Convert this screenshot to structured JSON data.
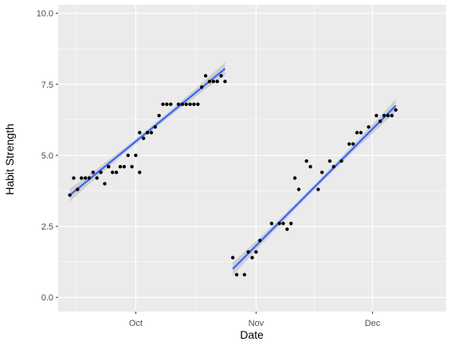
{
  "chart_data": {
    "type": "scatter",
    "title": "",
    "xlabel": "Date",
    "ylabel": "Habit Strength",
    "x_is_date": true,
    "xlim": [
      "2022-09-11",
      "2022-12-20"
    ],
    "ylim": [
      -0.5,
      10.3
    ],
    "yticks": [
      0.0,
      2.5,
      5.0,
      7.5,
      10.0
    ],
    "ytick_labels": [
      "0.0",
      "2.5",
      "5.0",
      "7.5",
      "10.0"
    ],
    "xticks": [
      "2022-10-01",
      "2022-11-01",
      "2022-12-01"
    ],
    "xtick_labels": [
      "Oct",
      "Nov",
      "Dec"
    ],
    "grid": true,
    "panel_background": "#ebebeb",
    "grid_color": "#ffffff",
    "point_color": "#000000",
    "trend_color": "#3366ff",
    "band_color": "#bdbdbd",
    "series": [
      {
        "points": [
          [
            "2022-09-14",
            3.6
          ],
          [
            "2022-09-15",
            4.2
          ],
          [
            "2022-09-16",
            3.8
          ],
          [
            "2022-09-17",
            4.2
          ],
          [
            "2022-09-18",
            4.2
          ],
          [
            "2022-09-19",
            4.2
          ],
          [
            "2022-09-20",
            4.4
          ],
          [
            "2022-09-21",
            4.2
          ],
          [
            "2022-09-22",
            4.4
          ],
          [
            "2022-09-23",
            4.0
          ],
          [
            "2022-09-24",
            4.6
          ],
          [
            "2022-09-25",
            4.4
          ],
          [
            "2022-09-26",
            4.4
          ],
          [
            "2022-09-27",
            4.6
          ],
          [
            "2022-09-28",
            4.6
          ],
          [
            "2022-09-29",
            5.0
          ],
          [
            "2022-09-30",
            4.6
          ],
          [
            "2022-10-01",
            5.0
          ],
          [
            "2022-10-02",
            4.4
          ],
          [
            "2022-10-02",
            5.8
          ],
          [
            "2022-10-03",
            5.6
          ],
          [
            "2022-10-04",
            5.8
          ],
          [
            "2022-10-05",
            5.8
          ],
          [
            "2022-10-06",
            6.0
          ],
          [
            "2022-10-07",
            6.4
          ],
          [
            "2022-10-08",
            6.8
          ],
          [
            "2022-10-09",
            6.8
          ],
          [
            "2022-10-10",
            6.8
          ],
          [
            "2022-10-12",
            6.8
          ],
          [
            "2022-10-13",
            6.8
          ],
          [
            "2022-10-14",
            6.8
          ],
          [
            "2022-10-15",
            6.8
          ],
          [
            "2022-10-16",
            6.8
          ],
          [
            "2022-10-17",
            6.8
          ],
          [
            "2022-10-18",
            7.4
          ],
          [
            "2022-10-19",
            7.8
          ],
          [
            "2022-10-20",
            7.6
          ],
          [
            "2022-10-21",
            7.6
          ],
          [
            "2022-10-22",
            7.6
          ],
          [
            "2022-10-23",
            7.8
          ],
          [
            "2022-10-24",
            7.6
          ]
        ],
        "trend": {
          "start": [
            "2022-09-14",
            3.6
          ],
          "end": [
            "2022-10-24",
            8.05
          ]
        }
      },
      {
        "points": [
          [
            "2022-10-26",
            1.4
          ],
          [
            "2022-10-27",
            0.8
          ],
          [
            "2022-10-29",
            0.8
          ],
          [
            "2022-10-30",
            1.6
          ],
          [
            "2022-10-31",
            1.4
          ],
          [
            "2022-11-01",
            1.6
          ],
          [
            "2022-11-02",
            2.0
          ],
          [
            "2022-11-05",
            2.6
          ],
          [
            "2022-11-07",
            2.6
          ],
          [
            "2022-11-08",
            2.6
          ],
          [
            "2022-11-09",
            2.4
          ],
          [
            "2022-11-10",
            2.6
          ],
          [
            "2022-11-11",
            4.2
          ],
          [
            "2022-11-12",
            3.8
          ],
          [
            "2022-11-14",
            4.8
          ],
          [
            "2022-11-15",
            4.6
          ],
          [
            "2022-11-17",
            3.8
          ],
          [
            "2022-11-18",
            4.4
          ],
          [
            "2022-11-20",
            4.8
          ],
          [
            "2022-11-21",
            4.6
          ],
          [
            "2022-11-23",
            4.8
          ],
          [
            "2022-11-25",
            5.4
          ],
          [
            "2022-11-26",
            5.4
          ],
          [
            "2022-11-27",
            5.8
          ],
          [
            "2022-11-28",
            5.8
          ],
          [
            "2022-11-30",
            6.0
          ],
          [
            "2022-12-02",
            6.4
          ],
          [
            "2022-12-03",
            6.2
          ],
          [
            "2022-12-04",
            6.4
          ],
          [
            "2022-12-05",
            6.4
          ],
          [
            "2022-12-06",
            6.4
          ],
          [
            "2022-12-07",
            6.6
          ]
        ],
        "trend": {
          "start": [
            "2022-10-26",
            1.0
          ],
          "end": [
            "2022-12-07",
            6.75
          ]
        }
      }
    ]
  }
}
